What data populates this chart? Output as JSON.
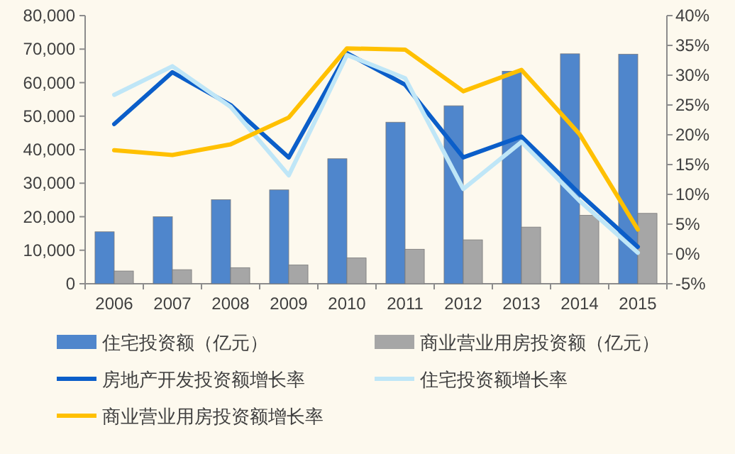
{
  "chart_data": {
    "type": "bar",
    "categories": [
      "2006",
      "2007",
      "2008",
      "2009",
      "2010",
      "2011",
      "2012",
      "2013",
      "2014",
      "2015"
    ],
    "series": [
      {
        "name": "住宅投资额（亿元）",
        "color": "#4f86cc",
        "values": [
          15500,
          20000,
          25100,
          28000,
          37300,
          48200,
          53100,
          63400,
          68600,
          68500
        ]
      },
      {
        "name": "商业营业用房投资额（亿元）",
        "color": "#a6a6a6",
        "values": [
          3800,
          4200,
          4800,
          5600,
          7700,
          10300,
          13100,
          16900,
          20400,
          21000
        ]
      },
      {
        "name": "房地产开发投资额增长率",
        "type": "line",
        "axis": "y2",
        "color": "#0b5ec9",
        "values": [
          21.8,
          30.5,
          25.0,
          16.2,
          33.7,
          28.4,
          16.2,
          19.7,
          10.1,
          1.2
        ]
      },
      {
        "name": "住宅投资额增长率",
        "type": "line",
        "axis": "y2",
        "color": "#bfe6f7",
        "values": [
          26.7,
          31.5,
          24.7,
          13.2,
          33.4,
          29.5,
          10.9,
          18.8,
          8.9,
          0.2
        ]
      },
      {
        "name": "商业营业用房投资额增长率",
        "type": "line",
        "axis": "y2",
        "color": "#ffc000",
        "values": [
          17.4,
          16.6,
          18.4,
          22.9,
          34.5,
          34.3,
          27.3,
          30.9,
          20.1,
          4.1
        ]
      }
    ],
    "ylim": [
      0,
      80000
    ],
    "yticks": [
      0,
      {
        "value": 10000,
        "label": "10,000"
      },
      {
        "value": 20000,
        "label": "20,000"
      },
      {
        "value": 30000,
        "label": "30,000"
      },
      {
        "value": 40000,
        "label": "40,000"
      },
      {
        "value": 50000,
        "label": "50,000"
      },
      {
        "value": 60000,
        "label": "60,000"
      },
      {
        "value": 70000,
        "label": "70,000"
      },
      {
        "value": 80000,
        "label": "80,000"
      }
    ],
    "y2lim": [
      -5,
      40
    ],
    "y2ticks": [
      {
        "value": -5,
        "label": "-5%"
      },
      {
        "value": 0,
        "label": "0%"
      },
      {
        "value": 5,
        "label": "5%"
      },
      {
        "value": 10,
        "label": "10%"
      },
      {
        "value": 15,
        "label": "15%"
      },
      {
        "value": 20,
        "label": "20%"
      },
      {
        "value": 25,
        "label": "25%"
      },
      {
        "value": 30,
        "label": "30%"
      },
      {
        "value": 35,
        "label": "35%"
      },
      {
        "value": 40,
        "label": "40%"
      }
    ],
    "legend": "bottom"
  }
}
